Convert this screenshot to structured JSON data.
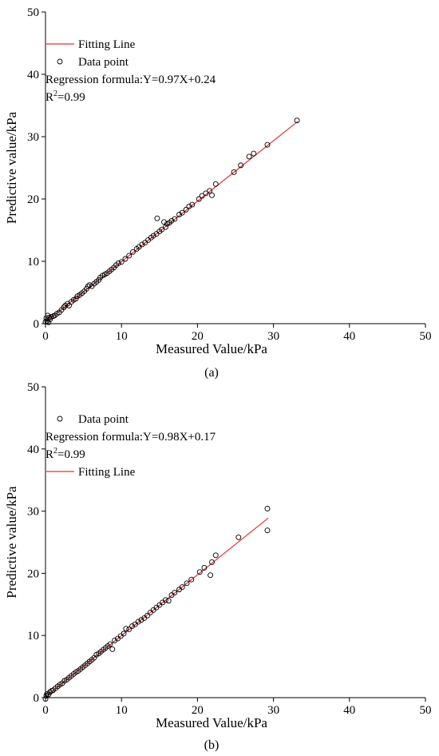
{
  "colors": {
    "fit": "#e8302f",
    "point": "#000000",
    "axis": "#000000",
    "background": "#ffffff"
  },
  "chart_data": [
    {
      "type": "scatter",
      "caption": "(a)",
      "xlabel": "Measured Value/kPa",
      "ylabel": "Predictive value/kPa",
      "xlim": [
        0,
        50
      ],
      "ylim": [
        0,
        50
      ],
      "xticks": [
        0,
        10,
        20,
        30,
        40,
        50
      ],
      "yticks": [
        0,
        10,
        20,
        30,
        40,
        50
      ],
      "grid": false,
      "legend_placement": "top-left",
      "legend": [
        {
          "kind": "line",
          "label": "Fitting Line"
        },
        {
          "kind": "marker",
          "label": "Data point"
        },
        {
          "kind": "text",
          "label": "Regression formula:Y=0.97X+0.24"
        },
        {
          "kind": "r2",
          "label": "R",
          "sup": "2",
          "rest": "=0.99"
        }
      ],
      "fit": {
        "slope": 0.97,
        "intercept": 0.24,
        "x_range": [
          0,
          33.2
        ]
      },
      "series": [
        {
          "name": "Data point",
          "x": [
            0.0,
            0.1,
            0.2,
            0.3,
            0.4,
            0.5,
            0.6,
            0.8,
            1.0,
            1.2,
            1.5,
            1.8,
            2.1,
            2.4,
            2.6,
            2.9,
            3.1,
            3.4,
            3.7,
            4.0,
            4.2,
            4.5,
            4.8,
            5.1,
            5.4,
            5.6,
            5.8,
            6.1,
            6.4,
            6.7,
            7.0,
            7.2,
            7.5,
            7.8,
            8.1,
            8.4,
            8.7,
            9.0,
            9.3,
            9.6,
            10.0,
            10.5,
            11.0,
            11.5,
            12.0,
            12.3,
            12.7,
            13.1,
            13.5,
            13.9,
            14.2,
            14.6,
            14.7,
            15.0,
            15.3,
            15.6,
            15.8,
            16.0,
            16.3,
            16.6,
            17.0,
            17.6,
            18.0,
            18.5,
            18.9,
            19.3,
            20.2,
            20.6,
            21.1,
            21.6,
            21.9,
            22.4,
            24.8,
            25.7,
            26.8,
            27.4,
            29.2,
            33.1
          ],
          "y": [
            0.3,
            0.9,
            0.4,
            1.3,
            0.2,
            1.0,
            0.7,
            1.1,
            1.2,
            1.3,
            1.6,
            1.8,
            2.2,
            2.6,
            2.9,
            3.2,
            2.9,
            3.5,
            3.8,
            4.0,
            4.4,
            4.6,
            4.9,
            5.2,
            5.6,
            6.0,
            6.2,
            6.0,
            6.4,
            6.7,
            7.0,
            7.4,
            7.7,
            7.9,
            8.1,
            8.4,
            8.7,
            9.0,
            9.4,
            9.7,
            9.9,
            10.4,
            10.9,
            11.5,
            12.0,
            12.3,
            12.7,
            13.0,
            13.4,
            13.8,
            14.1,
            14.4,
            16.9,
            14.8,
            15.1,
            16.3,
            15.5,
            16.0,
            16.2,
            16.5,
            16.8,
            17.5,
            17.8,
            18.3,
            18.8,
            19.1,
            20.0,
            20.5,
            20.9,
            21.3,
            20.6,
            22.4,
            24.3,
            25.4,
            26.8,
            27.3,
            28.7,
            32.6
          ]
        }
      ]
    },
    {
      "type": "scatter",
      "caption": "(b)",
      "xlabel": "Measured Value/kPa",
      "ylabel": "Predictive value/kPa",
      "xlim": [
        0,
        50
      ],
      "ylim": [
        0,
        50
      ],
      "xticks": [
        0,
        10,
        20,
        30,
        40,
        50
      ],
      "yticks": [
        0,
        10,
        20,
        30,
        40,
        50
      ],
      "grid": false,
      "legend_placement": "top-left",
      "legend": [
        {
          "kind": "marker",
          "label": "Data point"
        },
        {
          "kind": "text",
          "label": "Regression formula:Y=0.98X+0.17"
        },
        {
          "kind": "r2",
          "label": "R",
          "sup": "2",
          "rest": "=0.99"
        },
        {
          "kind": "line",
          "label": "Fitting Line"
        }
      ],
      "fit": {
        "slope": 0.98,
        "intercept": 0.17,
        "x_range": [
          0,
          29.3
        ]
      },
      "series": [
        {
          "name": "Data point",
          "x": [
            0.0,
            0.1,
            0.2,
            0.4,
            0.6,
            0.8,
            1.0,
            1.3,
            1.6,
            1.9,
            2.2,
            2.5,
            2.8,
            3.1,
            3.4,
            3.7,
            4.0,
            4.3,
            4.6,
            4.9,
            5.2,
            5.5,
            5.8,
            6.1,
            6.4,
            6.7,
            7.0,
            7.3,
            7.6,
            7.9,
            8.2,
            8.5,
            8.8,
            9.1,
            9.5,
            9.9,
            10.3,
            10.6,
            11.0,
            11.4,
            11.8,
            12.2,
            12.6,
            13.0,
            13.4,
            13.8,
            14.2,
            14.6,
            15.0,
            15.4,
            15.8,
            16.2,
            16.6,
            17.0,
            17.6,
            18.0,
            18.6,
            19.2,
            20.3,
            20.9,
            21.7,
            21.9,
            22.4,
            25.4,
            29.2,
            29.2
          ],
          "y": [
            -0.2,
            0.3,
            0.6,
            0.5,
            0.9,
            1.1,
            1.2,
            1.5,
            1.8,
            2.1,
            2.3,
            2.7,
            2.9,
            3.2,
            3.5,
            3.8,
            4.1,
            4.3,
            4.6,
            4.9,
            5.2,
            5.5,
            5.8,
            6.1,
            6.4,
            6.9,
            7.1,
            7.4,
            7.7,
            8.0,
            8.3,
            8.6,
            7.8,
            9.2,
            9.5,
            9.9,
            10.3,
            11.1,
            11.0,
            11.5,
            11.8,
            12.2,
            12.5,
            12.8,
            13.2,
            13.7,
            14.1,
            14.5,
            14.9,
            15.3,
            15.7,
            15.6,
            16.5,
            16.9,
            17.4,
            17.8,
            18.4,
            19.0,
            20.2,
            20.9,
            19.7,
            21.8,
            22.9,
            25.8,
            30.4,
            26.9
          ]
        }
      ]
    }
  ]
}
